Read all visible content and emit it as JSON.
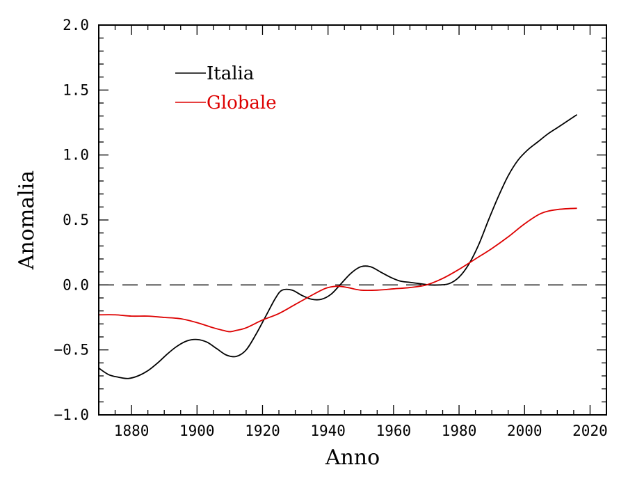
{
  "chart_data": {
    "type": "line",
    "title": "",
    "xlabel": "Anno",
    "ylabel": "Anomalia",
    "xlim": [
      1870,
      2025
    ],
    "ylim": [
      -1.0,
      2.0
    ],
    "xticks": [
      1880,
      1900,
      1920,
      1940,
      1960,
      1980,
      2000,
      2020
    ],
    "xtick_labels": [
      "1880",
      "1900",
      "1920",
      "1940",
      "1960",
      "1980",
      "2000",
      "2020"
    ],
    "yticks": [
      -1.0,
      -0.5,
      0.0,
      0.5,
      1.0,
      1.5,
      2.0
    ],
    "ytick_labels": [
      "−1.0",
      "−0.5",
      "0.0",
      "0.5",
      "1.0",
      "1.5",
      "2.0"
    ],
    "reference_line": {
      "y": 0.0,
      "style": "dashed"
    },
    "legend_position": "top-left",
    "series": [
      {
        "name": "Italia",
        "color": "#000000",
        "x": [
          1870,
          1873,
          1876,
          1879,
          1882,
          1885,
          1888,
          1891,
          1894,
          1897,
          1900,
          1903,
          1906,
          1909,
          1912,
          1915,
          1918,
          1921,
          1924,
          1926,
          1929,
          1932,
          1935,
          1938,
          1941,
          1944,
          1947,
          1950,
          1953,
          1956,
          1959,
          1962,
          1965,
          1968,
          1971,
          1974,
          1977,
          1980,
          1983,
          1986,
          1989,
          1992,
          1995,
          1998,
          2001,
          2004,
          2007,
          2010,
          2013,
          2016
        ],
        "y": [
          -0.64,
          -0.69,
          -0.71,
          -0.72,
          -0.7,
          -0.66,
          -0.6,
          -0.53,
          -0.47,
          -0.43,
          -0.42,
          -0.44,
          -0.49,
          -0.54,
          -0.55,
          -0.5,
          -0.38,
          -0.24,
          -0.1,
          -0.04,
          -0.04,
          -0.08,
          -0.11,
          -0.11,
          -0.07,
          0.01,
          0.09,
          0.14,
          0.14,
          0.1,
          0.06,
          0.03,
          0.02,
          0.01,
          0.0,
          0.0,
          0.01,
          0.06,
          0.16,
          0.31,
          0.5,
          0.68,
          0.84,
          0.96,
          1.04,
          1.1,
          1.16,
          1.21,
          1.26,
          1.31
        ]
      },
      {
        "name": "Globale",
        "color": "#dd0000",
        "x": [
          1870,
          1875,
          1880,
          1885,
          1890,
          1895,
          1900,
          1905,
          1908,
          1910,
          1912,
          1915,
          1920,
          1925,
          1930,
          1935,
          1938,
          1940,
          1943,
          1946,
          1950,
          1955,
          1960,
          1965,
          1970,
          1975,
          1980,
          1985,
          1990,
          1995,
          2000,
          2005,
          2010,
          2016
        ],
        "y": [
          -0.23,
          -0.23,
          -0.24,
          -0.24,
          -0.25,
          -0.26,
          -0.29,
          -0.33,
          -0.35,
          -0.36,
          -0.35,
          -0.33,
          -0.27,
          -0.22,
          -0.15,
          -0.08,
          -0.04,
          -0.02,
          -0.01,
          -0.02,
          -0.04,
          -0.04,
          -0.03,
          -0.02,
          0.0,
          0.05,
          0.12,
          0.2,
          0.28,
          0.37,
          0.47,
          0.55,
          0.58,
          0.59
        ]
      }
    ]
  }
}
